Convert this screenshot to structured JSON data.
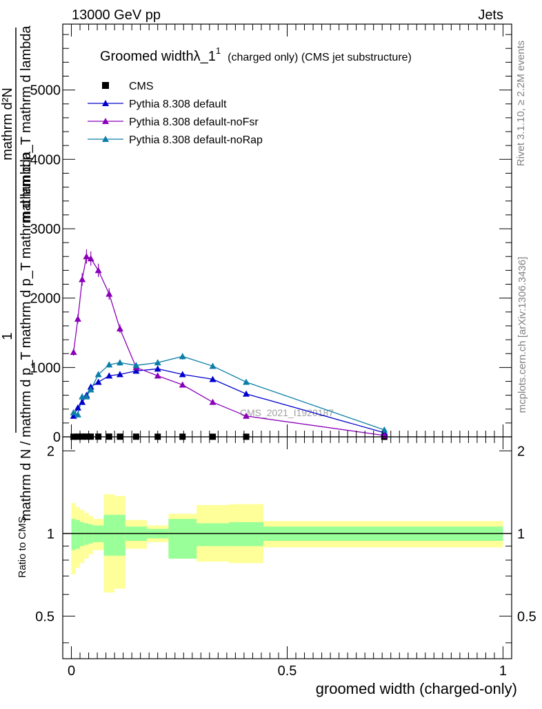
{
  "header": {
    "energy_label": "13000 GeV pp",
    "category_label": "Jets",
    "rivet_label": "Rivet 3.1.10, ≥ 2.2M events",
    "mcplots_label": "mcplots.cern.ch [arXiv:1306.3436]"
  },
  "chart_data": [
    {
      "type": "line",
      "title_main": "Groomed widthλ_1",
      "title_sup": "1",
      "title_rest": "(charged only) (CMS jet substructure)",
      "ylabel_top": "1",
      "ylabel_bottom": "mathrm d N / mathrm d p_T mathrm d p_T mathrm d lambda",
      "ylabel_numerator": "mathrm d²N",
      "ylabel_denominator": "mathrm d p_T mathrm d lambda",
      "watermark": "CMS_2021_I1920187",
      "xlim": [
        -0.02,
        1.02
      ],
      "ylim": [
        0,
        5950
      ],
      "y_ticks": [
        0,
        1000,
        2000,
        3000,
        4000,
        5000
      ],
      "y_tick_labels": [
        "0",
        "1000",
        "2000",
        "3000",
        "4000",
        "5000"
      ],
      "x": [
        0.005,
        0.015,
        0.025,
        0.035,
        0.045,
        0.0625,
        0.0875,
        0.1125,
        0.15,
        0.2,
        0.2575,
        0.3275,
        0.405,
        0.725
      ],
      "series": [
        {
          "name": "CMS",
          "color": "#000000",
          "marker": "square",
          "values": [
            1.5,
            2.5,
            3,
            3,
            3,
            3,
            3,
            2.5,
            2.5,
            2,
            2,
            1.5,
            1.5,
            0.5
          ]
        },
        {
          "name": "Pythia 8.308 default",
          "color": "#0000cc",
          "marker": "triangle",
          "values": [
            300,
            420,
            500,
            600,
            720,
            790,
            880,
            900,
            950,
            980,
            900,
            830,
            620,
            60
          ]
        },
        {
          "name": "Pythia 8.308 default-noFsr",
          "color": "#8a00b8",
          "marker": "triangle",
          "values": [
            1220,
            1700,
            2270,
            2600,
            2570,
            2400,
            2060,
            1560,
            1000,
            880,
            750,
            500,
            300,
            20
          ]
        },
        {
          "name": "Pythia 8.308 default-noRap",
          "color": "#0a7ea8",
          "marker": "triangle",
          "values": [
            350,
            320,
            580,
            580,
            680,
            900,
            1040,
            1070,
            1030,
            1070,
            1160,
            1020,
            790,
            100
          ]
        }
      ]
    },
    {
      "type": "area",
      "ylabel": "Ratio to CMS",
      "xlabel": "groomed width (charged-only)",
      "xlim": [
        -0.02,
        1.02
      ],
      "ylim": [
        0.35,
        2.25
      ],
      "y_ticks": [
        0.5,
        1,
        2
      ],
      "y_tick_labels": [
        "0.5",
        "1",
        "2"
      ],
      "x_ticks": [
        0,
        0.5,
        1
      ],
      "x_tick_labels": [
        "0",
        "0.5",
        "1"
      ],
      "bin_edges": [
        0,
        0.01,
        0.02,
        0.03,
        0.04,
        0.05,
        0.075,
        0.1,
        0.125,
        0.175,
        0.225,
        0.29,
        0.365,
        0.445,
        1.0
      ],
      "inner_band": {
        "color": "#99ff99",
        "low": [
          0.87,
          0.88,
          0.9,
          0.91,
          0.92,
          0.93,
          0.83,
          0.83,
          0.94,
          0.96,
          0.81,
          0.9,
          0.9,
          0.94
        ],
        "high": [
          1.13,
          1.12,
          1.1,
          1.09,
          1.08,
          1.07,
          1.17,
          1.17,
          1.06,
          1.04,
          1.13,
          1.09,
          1.1,
          1.06
        ]
      },
      "outer_band": {
        "color": "#ffff99",
        "low": [
          0.71,
          0.75,
          0.78,
          0.81,
          0.84,
          0.87,
          0.61,
          0.63,
          0.88,
          0.93,
          0.81,
          0.79,
          0.78,
          0.89
        ],
        "high": [
          1.29,
          1.25,
          1.22,
          1.19,
          1.16,
          1.13,
          1.39,
          1.37,
          1.12,
          1.07,
          1.18,
          1.27,
          1.28,
          1.11
        ]
      },
      "reference_line": 1
    }
  ]
}
